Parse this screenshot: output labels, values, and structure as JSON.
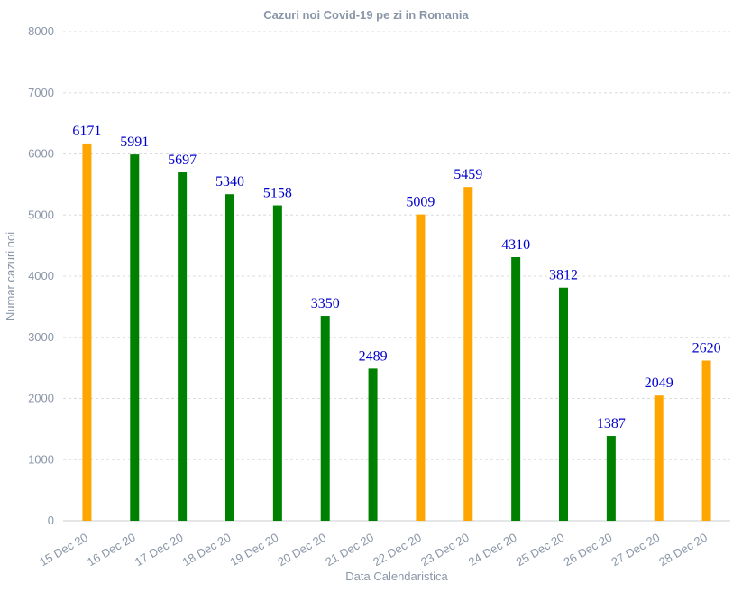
{
  "chart_data": {
    "type": "bar",
    "title": "Cazuri noi Covid-19 pe zi in Romania",
    "xlabel": "Data Calendaristica",
    "ylabel": "Numar cazuri noi",
    "ylim": [
      0,
      8000
    ],
    "yticks": [
      0,
      1000,
      2000,
      3000,
      4000,
      5000,
      6000,
      7000,
      8000
    ],
    "grid": true,
    "categories": [
      "15 Dec 20",
      "16 Dec 20",
      "17 Dec 20",
      "18 Dec 20",
      "19 Dec 20",
      "20 Dec 20",
      "21 Dec 20",
      "22 Dec 20",
      "23 Dec 20",
      "24 Dec 20",
      "25 Dec 20",
      "26 Dec 20",
      "27 Dec 20",
      "28 Dec 20"
    ],
    "values": [
      6171,
      5991,
      5697,
      5340,
      5158,
      3350,
      2489,
      5009,
      5459,
      4310,
      3812,
      1387,
      2049,
      2620
    ],
    "bar_colors": [
      "#ffa500",
      "#008000",
      "#008000",
      "#008000",
      "#008000",
      "#008000",
      "#008000",
      "#ffa500",
      "#ffa500",
      "#008000",
      "#008000",
      "#008000",
      "#ffa500",
      "#ffa500"
    ],
    "data_label_color": "#0000cc"
  }
}
